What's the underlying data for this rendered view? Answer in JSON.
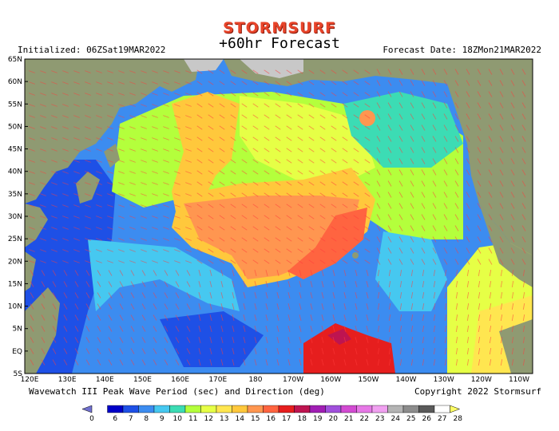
{
  "header": {
    "logo_text": "STORMSURF",
    "forecast_title": "+60hr Forecast",
    "initialized": "Initialized: 06ZSat19MAR2022",
    "forecast_date": "Forecast Date: 18ZMon21MAR2022"
  },
  "footer": {
    "caption": "Wavewatch III Peak Wave Period (sec) and Direction (deg)",
    "copyright": "Copyright 2022 Stormsurf"
  },
  "axes": {
    "lat_labels": [
      "65N",
      "60N",
      "55N",
      "50N",
      "45N",
      "40N",
      "35N",
      "30N",
      "25N",
      "20N",
      "15N",
      "10N",
      "5N",
      "EQ",
      "5S"
    ],
    "lon_labels": [
      "120E",
      "130E",
      "140E",
      "150E",
      "160E",
      "170E",
      "180",
      "170W",
      "160W",
      "150W",
      "140W",
      "130W",
      "120W",
      "110W"
    ]
  },
  "legend": {
    "values": [
      "0",
      "6",
      "7",
      "8",
      "9",
      "10",
      "11",
      "12",
      "13",
      "14",
      "15",
      "16",
      "17",
      "18",
      "19",
      "20",
      "21",
      "22",
      "23",
      "24",
      "25",
      "26",
      "27",
      "28"
    ],
    "colors": [
      "#7070d0",
      "#0000c8",
      "#1e50e6",
      "#3c8cf0",
      "#46c8f0",
      "#3cdcb4",
      "#b4ff3c",
      "#e6ff46",
      "#ffe650",
      "#ffc83c",
      "#ff9650",
      "#ff6440",
      "#e61e1e",
      "#be1450",
      "#a01eb4",
      "#a050dc",
      "#d24bd2",
      "#e678e6",
      "#f0a0f0",
      "#b4b4b4",
      "#8c8c8c",
      "#5a5a5a",
      "#ffffff",
      "#ffff64"
    ]
  },
  "colors": {
    "land": "#8f9a72",
    "ice": "#c8c8c8",
    "deep_blue": "#1e50e6",
    "sky_blue": "#3c8cf0",
    "cyan": "#46c8f0",
    "yellow_green": "#b4ff3c",
    "yellow": "#e6ff46",
    "gold": "#ffe650",
    "orange": "#ff9650",
    "light_orange": "#ffc83c",
    "red": "#e61e1e",
    "arrow": "#ff3c3c"
  }
}
